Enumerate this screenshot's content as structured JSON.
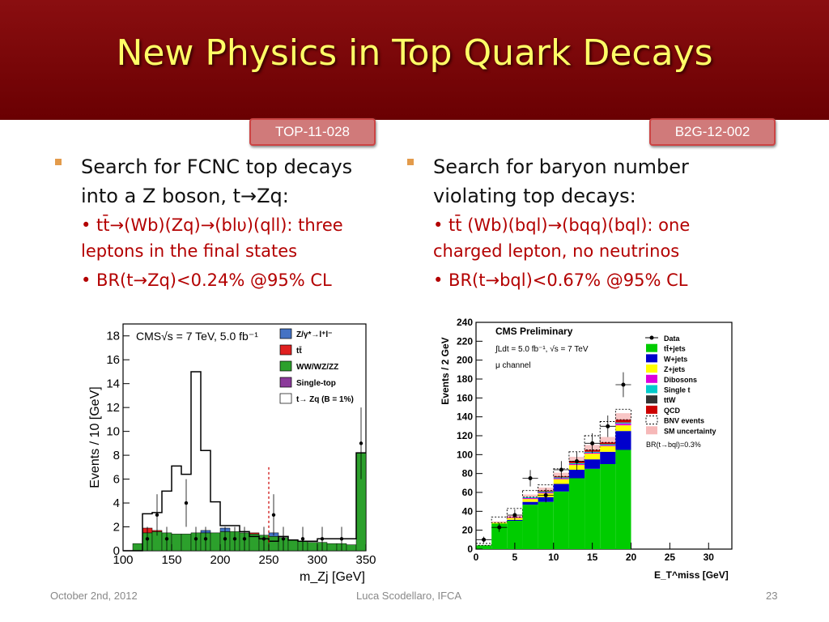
{
  "slide": {
    "title": "New Physics in Top Quark Decays",
    "left": {
      "tag": "TOP-11-028",
      "line1": "Search for FCNC top decays",
      "line2": "into a Z boson, t→Zq:",
      "sub1": "• tt̄→(Wb)(Zq)→(blυ)(qll):  three",
      "sub2": "leptons in the final states",
      "sub3": "• BR(t→Zq)<0.24% @95% CL"
    },
    "right": {
      "tag": "B2G-12-002",
      "line1": "Search for baryon number",
      "line2": "violating top decays:",
      "sub1": "• tt̄ (Wb)(bql)→(bqq)(bql): one",
      "sub2": "charged lepton, no neutrinos",
      "sub3": "• BR(t→bql)<0.67% @95% CL"
    },
    "footer": {
      "date": "October 2nd, 2012",
      "author": "Luca Scodellaro, IFCA",
      "page": "23"
    }
  },
  "chart_data": [
    {
      "type": "bar",
      "title": "CMS√s = 7 TeV, 5.0 fb⁻¹",
      "xlabel": "m_Zj [GeV]",
      "ylabel": "Events / 10 [GeV]",
      "xlim": [
        100,
        350
      ],
      "ylim": [
        0,
        19
      ],
      "xticks": [
        100,
        150,
        200,
        250,
        300,
        350
      ],
      "yticks": [
        0,
        2,
        4,
        6,
        8,
        10,
        12,
        14,
        16,
        18
      ],
      "x_bin_starts": [
        100,
        110,
        120,
        130,
        140,
        150,
        160,
        170,
        180,
        190,
        200,
        210,
        220,
        230,
        240,
        250,
        260,
        270,
        280,
        290,
        300,
        310,
        320,
        330,
        340
      ],
      "series": [
        {
          "name": "Z/γ*→l⁺l⁻",
          "color": "#4472c4",
          "values": [
            0,
            0,
            0,
            0,
            0,
            0,
            0,
            0,
            0.2,
            0,
            0.3,
            0,
            0,
            0,
            0,
            0.3,
            0,
            0,
            0,
            0,
            0,
            0,
            0,
            0,
            0
          ]
        },
        {
          "name": "tt̄",
          "color": "#e02020",
          "values": [
            0,
            0,
            0.4,
            0.1,
            0,
            0,
            0,
            0,
            0,
            0,
            0,
            0,
            0,
            0.1,
            0,
            0,
            0,
            0,
            0,
            0,
            0,
            0,
            0,
            0,
            0
          ]
        },
        {
          "name": "WW/WZ/ZZ",
          "color": "#2ca02c",
          "values": [
            0,
            0.6,
            1.5,
            1.6,
            1.5,
            1.4,
            1.4,
            1.5,
            1.5,
            1.5,
            1.6,
            1.6,
            1.5,
            1.4,
            1.3,
            1.2,
            1.1,
            0.9,
            0.8,
            0.7,
            0.7,
            0.6,
            0.6,
            0.5,
            8.2
          ]
        },
        {
          "name": "Single-top",
          "color": "#8b3a9a",
          "values": [
            0,
            0,
            0,
            0,
            0,
            0,
            0,
            0,
            0,
            0,
            0,
            0,
            0,
            0,
            0,
            0,
            0,
            0,
            0,
            0,
            0,
            0,
            0,
            0,
            0
          ]
        }
      ],
      "signal": {
        "name": "t→ Zq (B = 1%)",
        "values": [
          0,
          0,
          3.1,
          3.2,
          5.0,
          7.1,
          6.4,
          15.0,
          8.4,
          4.1,
          2.1,
          2.1,
          1.6,
          1.2,
          1.0,
          0.8,
          1.2,
          0.9,
          0.8,
          0.8,
          1.0,
          1.0,
          1.0,
          1.0,
          8.2
        ]
      },
      "cut_line_x": 250,
      "data_points": [
        {
          "x": 125,
          "y": 1
        },
        {
          "x": 135,
          "y": 3
        },
        {
          "x": 145,
          "y": 1
        },
        {
          "x": 165,
          "y": 4
        },
        {
          "x": 175,
          "y": 1
        },
        {
          "x": 185,
          "y": 1
        },
        {
          "x": 205,
          "y": 1
        },
        {
          "x": 215,
          "y": 1
        },
        {
          "x": 225,
          "y": 1
        },
        {
          "x": 245,
          "y": 1
        },
        {
          "x": 255,
          "y": 3
        },
        {
          "x": 265,
          "y": 1
        },
        {
          "x": 285,
          "y": 1
        },
        {
          "x": 305,
          "y": 1
        },
        {
          "x": 325,
          "y": 1
        },
        {
          "x": 345,
          "y": 9
        }
      ]
    },
    {
      "type": "bar",
      "title": "CMS Preliminary",
      "subtitle": "∫Ldt = 5.0 fb⁻¹, √s = 7 TeV",
      "subtitle2": "μ channel",
      "xlabel": "E_T^miss [GeV]",
      "ylabel": "Events / 2 GeV",
      "xlim": [
        0,
        33
      ],
      "ylim": [
        0,
        240
      ],
      "xticks": [
        0,
        5,
        10,
        15,
        20,
        25,
        30
      ],
      "yticks": [
        0,
        20,
        40,
        60,
        80,
        100,
        120,
        140,
        160,
        180,
        200,
        220,
        240
      ],
      "x_bin_starts": [
        0,
        2,
        4,
        6,
        8,
        10,
        12,
        14,
        16,
        18
      ],
      "series": [
        {
          "name": "tt̄+jets",
          "color": "#00cc00",
          "values": [
            4,
            27,
            30,
            47,
            50,
            61,
            75,
            85,
            90,
            105
          ]
        },
        {
          "name": "W+jets",
          "color": "#0000cc",
          "values": [
            0,
            0,
            1,
            3,
            5,
            8,
            9,
            10,
            13,
            20
          ]
        },
        {
          "name": "Z+jets",
          "color": "#ffff00",
          "values": [
            0,
            1,
            2,
            3,
            4,
            5,
            5,
            6,
            6,
            6
          ]
        },
        {
          "name": "Dibosons",
          "color": "#dd00dd",
          "values": [
            0,
            0,
            1,
            1,
            1,
            1,
            1,
            1,
            1,
            2
          ]
        },
        {
          "name": "Single t",
          "color": "#00cccc",
          "values": [
            0,
            0,
            0,
            1,
            1,
            1,
            1,
            1,
            1,
            1
          ]
        },
        {
          "name": "ttW",
          "color": "#333333",
          "values": [
            0,
            0,
            0,
            0,
            0,
            0,
            0,
            0,
            0,
            0
          ]
        },
        {
          "name": "QCD",
          "color": "#cc0000",
          "values": [
            0,
            0,
            0,
            0,
            1,
            1,
            2,
            2,
            2,
            3
          ]
        }
      ],
      "bnv_events": {
        "name": "BNV events",
        "values": [
          6,
          34,
          43,
          62,
          68,
          85,
          103,
          120,
          135,
          148
        ]
      },
      "sm_uncertainty": {
        "name": "SM uncertainty",
        "fraction": 0.05
      },
      "data_points": [
        {
          "x": 1,
          "y": 10
        },
        {
          "x": 3,
          "y": 23
        },
        {
          "x": 5,
          "y": 36
        },
        {
          "x": 7,
          "y": 75
        },
        {
          "x": 9,
          "y": 57
        },
        {
          "x": 11,
          "y": 84
        },
        {
          "x": 13,
          "y": 93
        },
        {
          "x": 15,
          "y": 112
        },
        {
          "x": 17,
          "y": 130
        },
        {
          "x": 19,
          "y": 174
        }
      ],
      "legend_extra": "BR(t→bql)=0.3%"
    }
  ]
}
